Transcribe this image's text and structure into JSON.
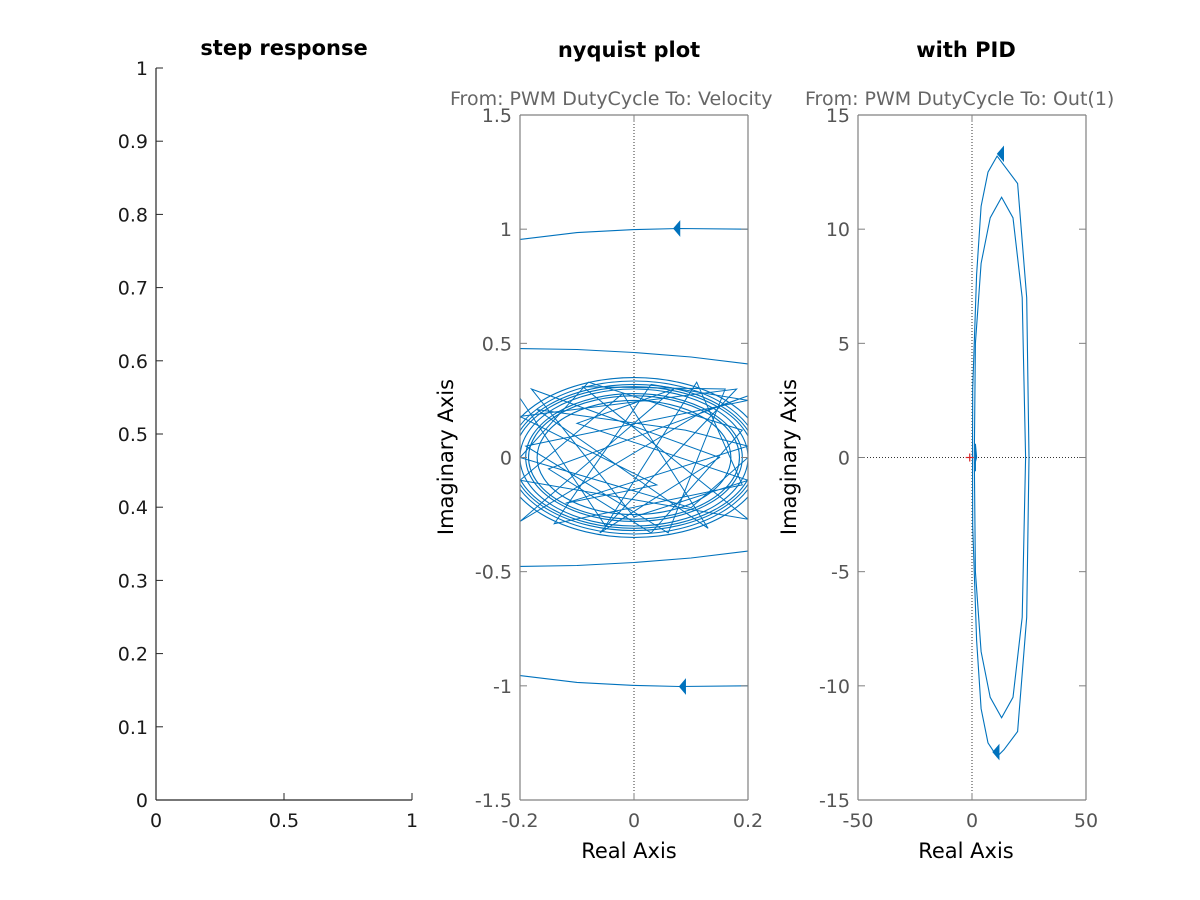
{
  "chart_data": [
    {
      "type": "line",
      "title": "step response",
      "xlabel": "",
      "ylabel": "",
      "xlim": [
        0,
        1
      ],
      "ylim": [
        0,
        1
      ],
      "xticks": [
        "0",
        "0.5",
        "1"
      ],
      "yticks": [
        "0",
        "0.1",
        "0.2",
        "0.3",
        "0.4",
        "0.5",
        "0.6",
        "0.7",
        "0.8",
        "0.9",
        "1"
      ],
      "grid": false,
      "series": []
    },
    {
      "type": "line",
      "title": "nyquist plot",
      "io_label": "From: PWM DutyCycle  To: Velocity",
      "xlabel": "Real Axis",
      "ylabel": "Imaginary Axis",
      "xlim": [
        -0.2,
        0.2
      ],
      "ylim": [
        -1.5,
        1.5
      ],
      "xticks": [
        "-0.2",
        "0",
        "0.2"
      ],
      "yticks": [
        "-1.5",
        "-1",
        "-0.5",
        "0",
        "0.5",
        "1",
        "1.5"
      ],
      "grid": false,
      "series": [
        {
          "color": "#0072BD",
          "curves": [
            [
              [
                -0.2,
                0.955
              ],
              [
                -0.1,
                0.985
              ],
              [
                0.0,
                0.998
              ],
              [
                0.08,
                1.003
              ],
              [
                0.2,
                1.0
              ]
            ],
            [
              [
                -0.2,
                -0.955
              ],
              [
                -0.1,
                -0.985
              ],
              [
                0.0,
                -0.998
              ],
              [
                0.08,
                -1.003
              ],
              [
                0.2,
                -1.0
              ]
            ],
            [
              [
                -0.2,
                0.477
              ],
              [
                -0.1,
                0.473
              ],
              [
                0.0,
                0.46
              ],
              [
                0.1,
                0.44
              ],
              [
                0.2,
                0.41
              ]
            ],
            [
              [
                -0.2,
                -0.477
              ],
              [
                -0.1,
                -0.473
              ],
              [
                0.0,
                -0.46
              ],
              [
                0.1,
                -0.44
              ],
              [
                0.2,
                -0.41
              ]
            ]
          ],
          "loops_rx": [
            0.23,
            0.22,
            0.215,
            0.21,
            0.2,
            0.19,
            0.185,
            0.17
          ],
          "loops_ry": [
            0.35,
            0.335,
            0.32,
            0.31,
            0.3,
            0.28,
            0.27,
            0.25
          ],
          "tangle": [
            [
              -0.2,
              0.26
            ],
            [
              -0.05,
              -0.3
            ],
            [
              0.11,
              0.33
            ],
            [
              0.19,
              -0.12
            ],
            [
              -0.14,
              -0.29
            ],
            [
              0.03,
              0.32
            ],
            [
              0.2,
              0.25
            ],
            [
              -0.19,
              0.05
            ],
            [
              0.06,
              -0.33
            ],
            [
              0.16,
              0.3
            ],
            [
              -0.09,
              0.31
            ],
            [
              0.2,
              -0.27
            ],
            [
              -0.2,
              -0.1
            ],
            [
              -0.02,
              0.28
            ],
            [
              0.13,
              -0.31
            ],
            [
              -0.17,
              0.21
            ],
            [
              0.09,
              0.12
            ],
            [
              0.2,
              0.05
            ],
            [
              -0.12,
              -0.2
            ],
            [
              0.04,
              -0.12
            ],
            [
              -0.2,
              0.18
            ],
            [
              0.18,
              0.3
            ],
            [
              -0.06,
              -0.33
            ],
            [
              0.15,
              0.0
            ],
            [
              -0.18,
              0.3
            ],
            [
              0.0,
              -0.26
            ],
            [
              0.2,
              -0.1
            ],
            [
              -0.1,
              0.15
            ],
            [
              0.07,
              0.3
            ],
            [
              -0.2,
              -0.28
            ],
            [
              0.12,
              0.2
            ],
            [
              0.2,
              0.27
            ],
            [
              -0.15,
              -0.05
            ],
            [
              0.03,
              -0.33
            ],
            [
              0.19,
              0.12
            ],
            [
              -0.08,
              0.33
            ],
            [
              -0.2,
              0.0
            ],
            [
              0.1,
              -0.22
            ],
            [
              0.2,
              0.0
            ]
          ],
          "arrows": [
            [
              0.075,
              1.003
            ],
            [
              0.085,
              -1.003
            ]
          ]
        }
      ]
    },
    {
      "type": "line",
      "title": "with PID",
      "io_label": "From: PWM DutyCycle  To: Out(1)",
      "xlabel": "Real Axis",
      "ylabel": "Imaginary Axis",
      "xlim": [
        -50,
        50
      ],
      "ylim": [
        -15,
        15
      ],
      "xticks": [
        "-50",
        "0",
        "50"
      ],
      "yticks": [
        "-15",
        "-10",
        "-5",
        "0",
        "5",
        "10",
        "15"
      ],
      "grid": false,
      "critical_point": [
        -1,
        0
      ],
      "series": [
        {
          "color": "#0072BD",
          "curves": [
            [
              [
                0.2,
                0.0
              ],
              [
                0.3,
                3.0
              ],
              [
                2.0,
                8.0
              ],
              [
                4.0,
                11.0
              ],
              [
                7.0,
                12.5
              ],
              [
                11.0,
                13.2
              ],
              [
                14.0,
                12.8
              ],
              [
                20.0,
                12.0
              ],
              [
                24.0,
                7.0
              ],
              [
                25.0,
                0.0
              ],
              [
                24.0,
                -7.0
              ],
              [
                20.0,
                -12.0
              ],
              [
                14.0,
                -12.8
              ],
              [
                11.0,
                -13.1
              ],
              [
                7.0,
                -12.5
              ],
              [
                4.0,
                -11.0
              ],
              [
                2.0,
                -8.0
              ],
              [
                0.3,
                -3.0
              ],
              [
                0.2,
                0.0
              ]
            ],
            [
              [
                1.0,
                0.0
              ],
              [
                1.5,
                5.0
              ],
              [
                4.0,
                8.5
              ],
              [
                8.0,
                10.5
              ],
              [
                13.0,
                11.4
              ],
              [
                18.0,
                10.5
              ],
              [
                22.0,
                7.0
              ],
              [
                23.5,
                0.0
              ],
              [
                22.0,
                -7.0
              ],
              [
                18.0,
                -10.5
              ],
              [
                13.0,
                -11.4
              ],
              [
                8.0,
                -10.5
              ],
              [
                4.0,
                -8.5
              ],
              [
                1.5,
                -5.0
              ],
              [
                1.0,
                0.0
              ]
            ],
            [
              [
                1.5,
                -0.6
              ],
              [
                1.5,
                0.6
              ],
              [
                2.0,
                0.0
              ],
              [
                1.2,
                -0.3
              ]
            ]
          ],
          "arrows": [
            [
              12.5,
              13.3
            ],
            [
              10.5,
              -12.9
            ]
          ]
        }
      ]
    }
  ]
}
